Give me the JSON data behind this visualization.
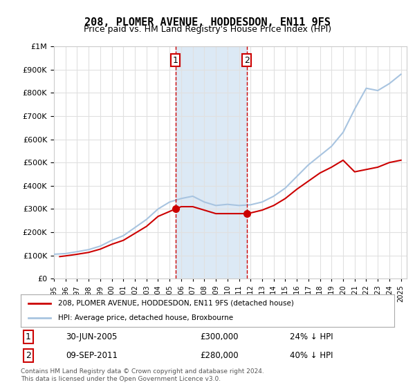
{
  "title": "208, PLOMER AVENUE, HODDESDON, EN11 9FS",
  "subtitle": "Price paid vs. HM Land Registry's House Price Index (HPI)",
  "footer": "Contains HM Land Registry data © Crown copyright and database right 2024.\nThis data is licensed under the Open Government Licence v3.0.",
  "legend_line1": "208, PLOMER AVENUE, HODDESDON, EN11 9FS (detached house)",
  "legend_line2": "HPI: Average price, detached house, Broxbourne",
  "transaction1_label": "1",
  "transaction1_date": "30-JUN-2005",
  "transaction1_price": "£300,000",
  "transaction1_hpi": "24% ↓ HPI",
  "transaction2_label": "2",
  "transaction2_date": "09-SEP-2011",
  "transaction2_price": "£280,000",
  "transaction2_hpi": "40% ↓ HPI",
  "transaction1_year": 2005.5,
  "transaction2_year": 2011.67,
  "ylim": [
    0,
    1000000
  ],
  "xlim_start": 1995,
  "xlim_end": 2025.5,
  "hpi_color": "#a8c4e0",
  "price_color": "#cc0000",
  "vline_color": "#cc0000",
  "shade_color": "#dce9f5",
  "grid_color": "#e0e0e0",
  "bg_color": "#ffffff",
  "hpi_years": [
    1995,
    1996,
    1997,
    1998,
    1999,
    2000,
    2001,
    2002,
    2003,
    2004,
    2005,
    2006,
    2007,
    2008,
    2009,
    2010,
    2011,
    2012,
    2013,
    2014,
    2015,
    2016,
    2017,
    2018,
    2019,
    2020,
    2021,
    2022,
    2023,
    2024,
    2025
  ],
  "hpi_values": [
    105000,
    108000,
    116000,
    125000,
    140000,
    165000,
    185000,
    220000,
    255000,
    300000,
    330000,
    345000,
    355000,
    330000,
    315000,
    320000,
    315000,
    318000,
    330000,
    355000,
    390000,
    440000,
    490000,
    530000,
    570000,
    630000,
    730000,
    820000,
    810000,
    840000,
    880000
  ],
  "price_years": [
    1995.5,
    1996,
    1997,
    1998,
    1999,
    2000,
    2001,
    2002,
    2003,
    2004,
    2005.5,
    2006,
    2007,
    2008,
    2009,
    2010,
    2011.67,
    2012,
    2013,
    2014,
    2015,
    2016,
    2017,
    2018,
    2019,
    2020,
    2021,
    2022,
    2023,
    2024,
    2025
  ],
  "price_values": [
    95000,
    98000,
    105000,
    113000,
    127000,
    148000,
    165000,
    195000,
    225000,
    268000,
    300000,
    310000,
    310000,
    295000,
    280000,
    280000,
    280000,
    283000,
    295000,
    315000,
    345000,
    385000,
    420000,
    455000,
    480000,
    510000,
    460000,
    470000,
    480000,
    500000,
    510000
  ],
  "marker1_year": 2005.5,
  "marker1_value": 300000,
  "marker2_year": 2011.67,
  "marker2_value": 280000
}
